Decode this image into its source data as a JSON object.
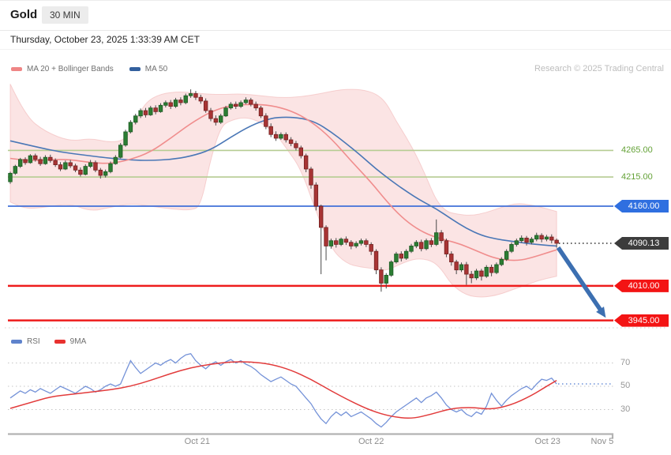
{
  "header": {
    "title": "Gold",
    "timeframe": "30 MIN",
    "datetime": "Thursday, October 23, 2025 1:33:39 AM CET",
    "credit": "Research © 2025 Trading Central"
  },
  "legend_main": {
    "items": [
      {
        "label": "MA 20 + Bollinger Bands",
        "color": "#ef8585"
      },
      {
        "label": "MA 50",
        "color": "#33609e"
      }
    ]
  },
  "legend_rsi": {
    "items": [
      {
        "label": "RSI",
        "color": "#5f83cc"
      },
      {
        "label": "9MA",
        "color": "#e8312f"
      }
    ]
  },
  "colors": {
    "up": "#2c7d33",
    "up_border": "#1d5a23",
    "down": "#a83434",
    "down_border": "#742121",
    "wick": "#4a4a4a",
    "band_fill": "#f7caca",
    "band_edge": "#f2b8b8",
    "ma20": "#f08d8d",
    "ma50": "#4a77b6",
    "resistance_line": "#b6cc92",
    "resistance_text": "#63a136",
    "pivot_line": "#4170d8",
    "pivot_bg": "#2f6fe0",
    "last_bg": "#3c3c3c",
    "dotted_last": "#2b2b2b",
    "support_line": "#ee1c1c",
    "support_bg": "#f31414",
    "rsi_line": "#7492d8",
    "rsi_ma": "#e23b3b",
    "rsi_dotted": "#6b8fd8",
    "grid": "#c6c6c6",
    "axis": "#b3b3b3",
    "arrow": "#3c6fb1"
  },
  "chart_data": {
    "type": "candlestick",
    "title": "Gold",
    "interval": "30 MIN",
    "legend_position": "top-left",
    "grid": "horizontal-levels-only",
    "price_range_visible": [
      3931,
      4398
    ],
    "levels": [
      {
        "label": "4265.00",
        "price": 4265.0,
        "kind": "resistance"
      },
      {
        "label": "4215.00",
        "price": 4215.0,
        "kind": "resistance"
      },
      {
        "label": "4160.00",
        "price": 4160.0,
        "kind": "pivot"
      },
      {
        "label": "4090.13",
        "price": 4090.13,
        "kind": "last"
      },
      {
        "label": "4010.00",
        "price": 4010.0,
        "kind": "support"
      },
      {
        "label": "3945.00",
        "price": 3945.0,
        "kind": "support"
      }
    ],
    "x_dates": [
      {
        "label": "Oct 21",
        "t": 37.3
      },
      {
        "label": "Oct 22",
        "t": 72.0
      },
      {
        "label": "Oct 23",
        "t": 107.2
      },
      {
        "label": "Nov 5",
        "t": 118.1
      }
    ],
    "rsi_gridlines": [
      {
        "label": "70",
        "value": 70
      },
      {
        "label": "50",
        "value": 50
      },
      {
        "label": "30",
        "value": 30
      }
    ],
    "rsi_current": 52,
    "projection_arrow": {
      "t1": 109.3,
      "p1": 4082,
      "t2": 118.8,
      "p2": 3950
    },
    "ohlc": [
      [
        4206,
        4225,
        4202,
        4222
      ],
      [
        4222,
        4238,
        4219,
        4235
      ],
      [
        4235,
        4251,
        4232,
        4248
      ],
      [
        4248,
        4252,
        4238,
        4242
      ],
      [
        4242,
        4258,
        4240,
        4255
      ],
      [
        4255,
        4259,
        4244,
        4248
      ],
      [
        4248,
        4253,
        4236,
        4240
      ],
      [
        4240,
        4256,
        4238,
        4252
      ],
      [
        4252,
        4257,
        4242,
        4246
      ],
      [
        4246,
        4250,
        4234,
        4238
      ],
      [
        4238,
        4243,
        4226,
        4230
      ],
      [
        4230,
        4246,
        4228,
        4242
      ],
      [
        4242,
        4247,
        4232,
        4236
      ],
      [
        4236,
        4240,
        4224,
        4228
      ],
      [
        4228,
        4233,
        4216,
        4220
      ],
      [
        4220,
        4239,
        4218,
        4235
      ],
      [
        4235,
        4247,
        4232,
        4242
      ],
      [
        4242,
        4246,
        4224,
        4228
      ],
      [
        4228,
        4232,
        4212,
        4218
      ],
      [
        4218,
        4229,
        4214,
        4225
      ],
      [
        4225,
        4244,
        4222,
        4240
      ],
      [
        4240,
        4256,
        4238,
        4252
      ],
      [
        4252,
        4279,
        4250,
        4275
      ],
      [
        4275,
        4304,
        4272,
        4300
      ],
      [
        4300,
        4322,
        4297,
        4318
      ],
      [
        4318,
        4334,
        4314,
        4330
      ],
      [
        4330,
        4344,
        4326,
        4340
      ],
      [
        4340,
        4345,
        4327,
        4332
      ],
      [
        4332,
        4349,
        4330,
        4345
      ],
      [
        4345,
        4350,
        4333,
        4338
      ],
      [
        4338,
        4354,
        4336,
        4350
      ],
      [
        4350,
        4359,
        4346,
        4355
      ],
      [
        4355,
        4360,
        4343,
        4348
      ],
      [
        4348,
        4364,
        4345,
        4360
      ],
      [
        4360,
        4365,
        4350,
        4355
      ],
      [
        4355,
        4372,
        4352,
        4368
      ],
      [
        4368,
        4380,
        4364,
        4372
      ],
      [
        4372,
        4377,
        4360,
        4365
      ],
      [
        4365,
        4370,
        4353,
        4358
      ],
      [
        4358,
        4363,
        4336,
        4340
      ],
      [
        4340,
        4345,
        4320,
        4325
      ],
      [
        4325,
        4331,
        4312,
        4318
      ],
      [
        4318,
        4334,
        4315,
        4330
      ],
      [
        4330,
        4349,
        4328,
        4345
      ],
      [
        4345,
        4356,
        4342,
        4352
      ],
      [
        4352,
        4357,
        4343,
        4348
      ],
      [
        4348,
        4359,
        4345,
        4355
      ],
      [
        4355,
        4365,
        4352,
        4360
      ],
      [
        4360,
        4364,
        4348,
        4352
      ],
      [
        4352,
        4357,
        4340,
        4345
      ],
      [
        4345,
        4349,
        4326,
        4330
      ],
      [
        4330,
        4335,
        4305,
        4310
      ],
      [
        4310,
        4316,
        4290,
        4295
      ],
      [
        4295,
        4301,
        4283,
        4288
      ],
      [
        4288,
        4299,
        4285,
        4295
      ],
      [
        4295,
        4299,
        4280,
        4285
      ],
      [
        4285,
        4290,
        4273,
        4278
      ],
      [
        4278,
        4283,
        4265,
        4270
      ],
      [
        4270,
        4274,
        4250,
        4255
      ],
      [
        4255,
        4259,
        4224,
        4230
      ],
      [
        4230,
        4234,
        4193,
        4200
      ],
      [
        4200,
        4205,
        4152,
        4160
      ],
      [
        4160,
        4163,
        4032,
        4120
      ],
      [
        4120,
        4124,
        4058,
        4085
      ],
      [
        4085,
        4099,
        4080,
        4095
      ],
      [
        4095,
        4100,
        4082,
        4088
      ],
      [
        4088,
        4101,
        4085,
        4098
      ],
      [
        4098,
        4103,
        4087,
        4092
      ],
      [
        4092,
        4096,
        4079,
        4085
      ],
      [
        4085,
        4094,
        4081,
        4090
      ],
      [
        4090,
        4099,
        4086,
        4095
      ],
      [
        4095,
        4099,
        4083,
        4088
      ],
      [
        4088,
        4092,
        4068,
        4075
      ],
      [
        4075,
        4079,
        4032,
        4040
      ],
      [
        4040,
        4045,
        3999,
        4015
      ],
      [
        4015,
        4034,
        4005,
        4030
      ],
      [
        4030,
        4058,
        4027,
        4055
      ],
      [
        4055,
        4074,
        4052,
        4070
      ],
      [
        4070,
        4075,
        4056,
        4062
      ],
      [
        4062,
        4079,
        4059,
        4075
      ],
      [
        4075,
        4089,
        4072,
        4085
      ],
      [
        4085,
        4096,
        4081,
        4092
      ],
      [
        4092,
        4097,
        4075,
        4080
      ],
      [
        4080,
        4099,
        4077,
        4095
      ],
      [
        4095,
        4100,
        4083,
        4088
      ],
      [
        4088,
        4135,
        4085,
        4110
      ],
      [
        4110,
        4115,
        4090,
        4095
      ],
      [
        4095,
        4099,
        4064,
        4070
      ],
      [
        4070,
        4075,
        4048,
        4055
      ],
      [
        4055,
        4059,
        4032,
        4040
      ],
      [
        4040,
        4054,
        4036,
        4050
      ],
      [
        4050,
        4055,
        4012,
        4032
      ],
      [
        4032,
        4038,
        4015,
        4025
      ],
      [
        4025,
        4042,
        4021,
        4038
      ],
      [
        4038,
        4042,
        4020,
        4028
      ],
      [
        4028,
        4049,
        4025,
        4045
      ],
      [
        4045,
        4050,
        4028,
        4035
      ],
      [
        4035,
        4054,
        4032,
        4050
      ],
      [
        4050,
        4064,
        4047,
        4060
      ],
      [
        4060,
        4079,
        4057,
        4075
      ],
      [
        4075,
        4092,
        4072,
        4088
      ],
      [
        4088,
        4099,
        4084,
        4095
      ],
      [
        4095,
        4105,
        4091,
        4100
      ],
      [
        4100,
        4104,
        4086,
        4092
      ],
      [
        4092,
        4102,
        4088,
        4098
      ],
      [
        4098,
        4110,
        4094,
        4105
      ],
      [
        4105,
        4109,
        4092,
        4098
      ],
      [
        4098,
        4106,
        4094,
        4102
      ],
      [
        4102,
        4107,
        4090,
        4096
      ],
      [
        4096,
        4099,
        4082,
        4090.13
      ]
    ],
    "ma20": [
      [
        0,
        4250
      ],
      [
        4,
        4245
      ],
      [
        8,
        4248
      ],
      [
        12,
        4248
      ],
      [
        16,
        4242
      ],
      [
        20,
        4240
      ],
      [
        24,
        4248
      ],
      [
        28,
        4262
      ],
      [
        32,
        4288
      ],
      [
        36,
        4316
      ],
      [
        40,
        4338
      ],
      [
        44,
        4350
      ],
      [
        48,
        4352
      ],
      [
        52,
        4350
      ],
      [
        56,
        4340
      ],
      [
        60,
        4320
      ],
      [
        64,
        4288
      ],
      [
        68,
        4245
      ],
      [
        72,
        4205
      ],
      [
        75,
        4170
      ],
      [
        78,
        4140
      ],
      [
        81,
        4118
      ],
      [
        84,
        4104
      ],
      [
        87,
        4096
      ],
      [
        90,
        4088
      ],
      [
        93,
        4076
      ],
      [
        96,
        4064
      ],
      [
        99,
        4058
      ],
      [
        102,
        4058
      ],
      [
        105,
        4066
      ],
      [
        107,
        4072
      ],
      [
        109,
        4078
      ]
    ],
    "ma50": [
      [
        0,
        4283
      ],
      [
        5,
        4272
      ],
      [
        10,
        4262
      ],
      [
        15,
        4256
      ],
      [
        20,
        4250
      ],
      [
        24,
        4247
      ],
      [
        28,
        4246
      ],
      [
        32,
        4248
      ],
      [
        36,
        4254
      ],
      [
        40,
        4266
      ],
      [
        44,
        4290
      ],
      [
        48,
        4312
      ],
      [
        52,
        4326
      ],
      [
        55,
        4328
      ],
      [
        58,
        4326
      ],
      [
        61,
        4318
      ],
      [
        64,
        4300
      ],
      [
        67,
        4278
      ],
      [
        70,
        4255
      ],
      [
        73,
        4230
      ],
      [
        76,
        4208
      ],
      [
        79,
        4188
      ],
      [
        82,
        4170
      ],
      [
        85,
        4155
      ],
      [
        88,
        4136
      ],
      [
        91,
        4118
      ],
      [
        94,
        4105
      ],
      [
        97,
        4098
      ],
      [
        100,
        4094
      ],
      [
        103,
        4090
      ],
      [
        106,
        4087
      ],
      [
        109,
        4085
      ]
    ],
    "boll_upper": [
      [
        0,
        4390
      ],
      [
        3,
        4330
      ],
      [
        7,
        4300
      ],
      [
        12,
        4282
      ],
      [
        16,
        4288
      ],
      [
        20,
        4280
      ],
      [
        23,
        4285
      ],
      [
        25,
        4320
      ],
      [
        27,
        4356
      ],
      [
        30,
        4372
      ],
      [
        34,
        4376
      ],
      [
        38,
        4372
      ],
      [
        42,
        4370
      ],
      [
        46,
        4372
      ],
      [
        50,
        4368
      ],
      [
        54,
        4364
      ],
      [
        58,
        4366
      ],
      [
        62,
        4372
      ],
      [
        66,
        4380
      ],
      [
        70,
        4380
      ],
      [
        73,
        4372
      ],
      [
        75,
        4355
      ],
      [
        77,
        4320
      ],
      [
        79,
        4290
      ],
      [
        81,
        4256
      ],
      [
        83,
        4215
      ],
      [
        85,
        4170
      ],
      [
        87,
        4150
      ],
      [
        89,
        4145
      ],
      [
        92,
        4142
      ],
      [
        95,
        4148
      ],
      [
        98,
        4158
      ],
      [
        101,
        4166
      ],
      [
        104,
        4162
      ],
      [
        106,
        4158
      ],
      [
        109,
        4150
      ]
    ],
    "boll_lower": [
      [
        0,
        4168
      ],
      [
        3,
        4155
      ],
      [
        7,
        4158
      ],
      [
        12,
        4165
      ],
      [
        16,
        4150
      ],
      [
        20,
        4158
      ],
      [
        24,
        4165
      ],
      [
        28,
        4160
      ],
      [
        32,
        4155
      ],
      [
        36,
        4152
      ],
      [
        38,
        4160
      ],
      [
        40,
        4250
      ],
      [
        42,
        4310
      ],
      [
        44,
        4322
      ],
      [
        47,
        4328
      ],
      [
        50,
        4318
      ],
      [
        53,
        4296
      ],
      [
        55,
        4270
      ],
      [
        58,
        4230
      ],
      [
        61,
        4150
      ],
      [
        64,
        4080
      ],
      [
        67,
        4052
      ],
      [
        70,
        4045
      ],
      [
        73,
        4042
      ],
      [
        75,
        4038
      ],
      [
        78,
        4052
      ],
      [
        81,
        4062
      ],
      [
        84,
        4058
      ],
      [
        86,
        4042
      ],
      [
        88,
        4012
      ],
      [
        91,
        3992
      ],
      [
        94,
        3988
      ],
      [
        97,
        3992
      ],
      [
        100,
        4002
      ],
      [
        103,
        4012
      ],
      [
        106,
        4022
      ],
      [
        109,
        4028
      ]
    ],
    "rsi_values": [
      40,
      43,
      46,
      44,
      47,
      45,
      48,
      46,
      44,
      47,
      50,
      48,
      46,
      44,
      47,
      50,
      48,
      45,
      47,
      50,
      52,
      50,
      52,
      62,
      72,
      66,
      61,
      64,
      67,
      70,
      68,
      71,
      73,
      70,
      74,
      77,
      78,
      72,
      68,
      65,
      69,
      71,
      68,
      71,
      73,
      70,
      72,
      69,
      67,
      64,
      60,
      57,
      54,
      56,
      58,
      55,
      52,
      50,
      45,
      40,
      35,
      28,
      22,
      18,
      24,
      28,
      25,
      28,
      24,
      26,
      28,
      25,
      22,
      18,
      15,
      19,
      24,
      28,
      31,
      34,
      37,
      40,
      36,
      40,
      42,
      45,
      40,
      34,
      30,
      28,
      30,
      26,
      24,
      28,
      26,
      33,
      44,
      38,
      33,
      38,
      42,
      45,
      48,
      50,
      47,
      52,
      56,
      55,
      57,
      52
    ],
    "rsi_ma9": [
      [
        0,
        31
      ],
      [
        4,
        36
      ],
      [
        8,
        41
      ],
      [
        12,
        43
      ],
      [
        16,
        45
      ],
      [
        20,
        47
      ],
      [
        24,
        50
      ],
      [
        28,
        55
      ],
      [
        32,
        61
      ],
      [
        36,
        66
      ],
      [
        40,
        69
      ],
      [
        44,
        71
      ],
      [
        48,
        71
      ],
      [
        52,
        69
      ],
      [
        56,
        64
      ],
      [
        60,
        56
      ],
      [
        64,
        46
      ],
      [
        68,
        37
      ],
      [
        72,
        29
      ],
      [
        76,
        24
      ],
      [
        80,
        22
      ],
      [
        84,
        26
      ],
      [
        88,
        31
      ],
      [
        92,
        32
      ],
      [
        96,
        30
      ],
      [
        100,
        34
      ],
      [
        104,
        42
      ],
      [
        107,
        50
      ],
      [
        109,
        55
      ]
    ]
  }
}
